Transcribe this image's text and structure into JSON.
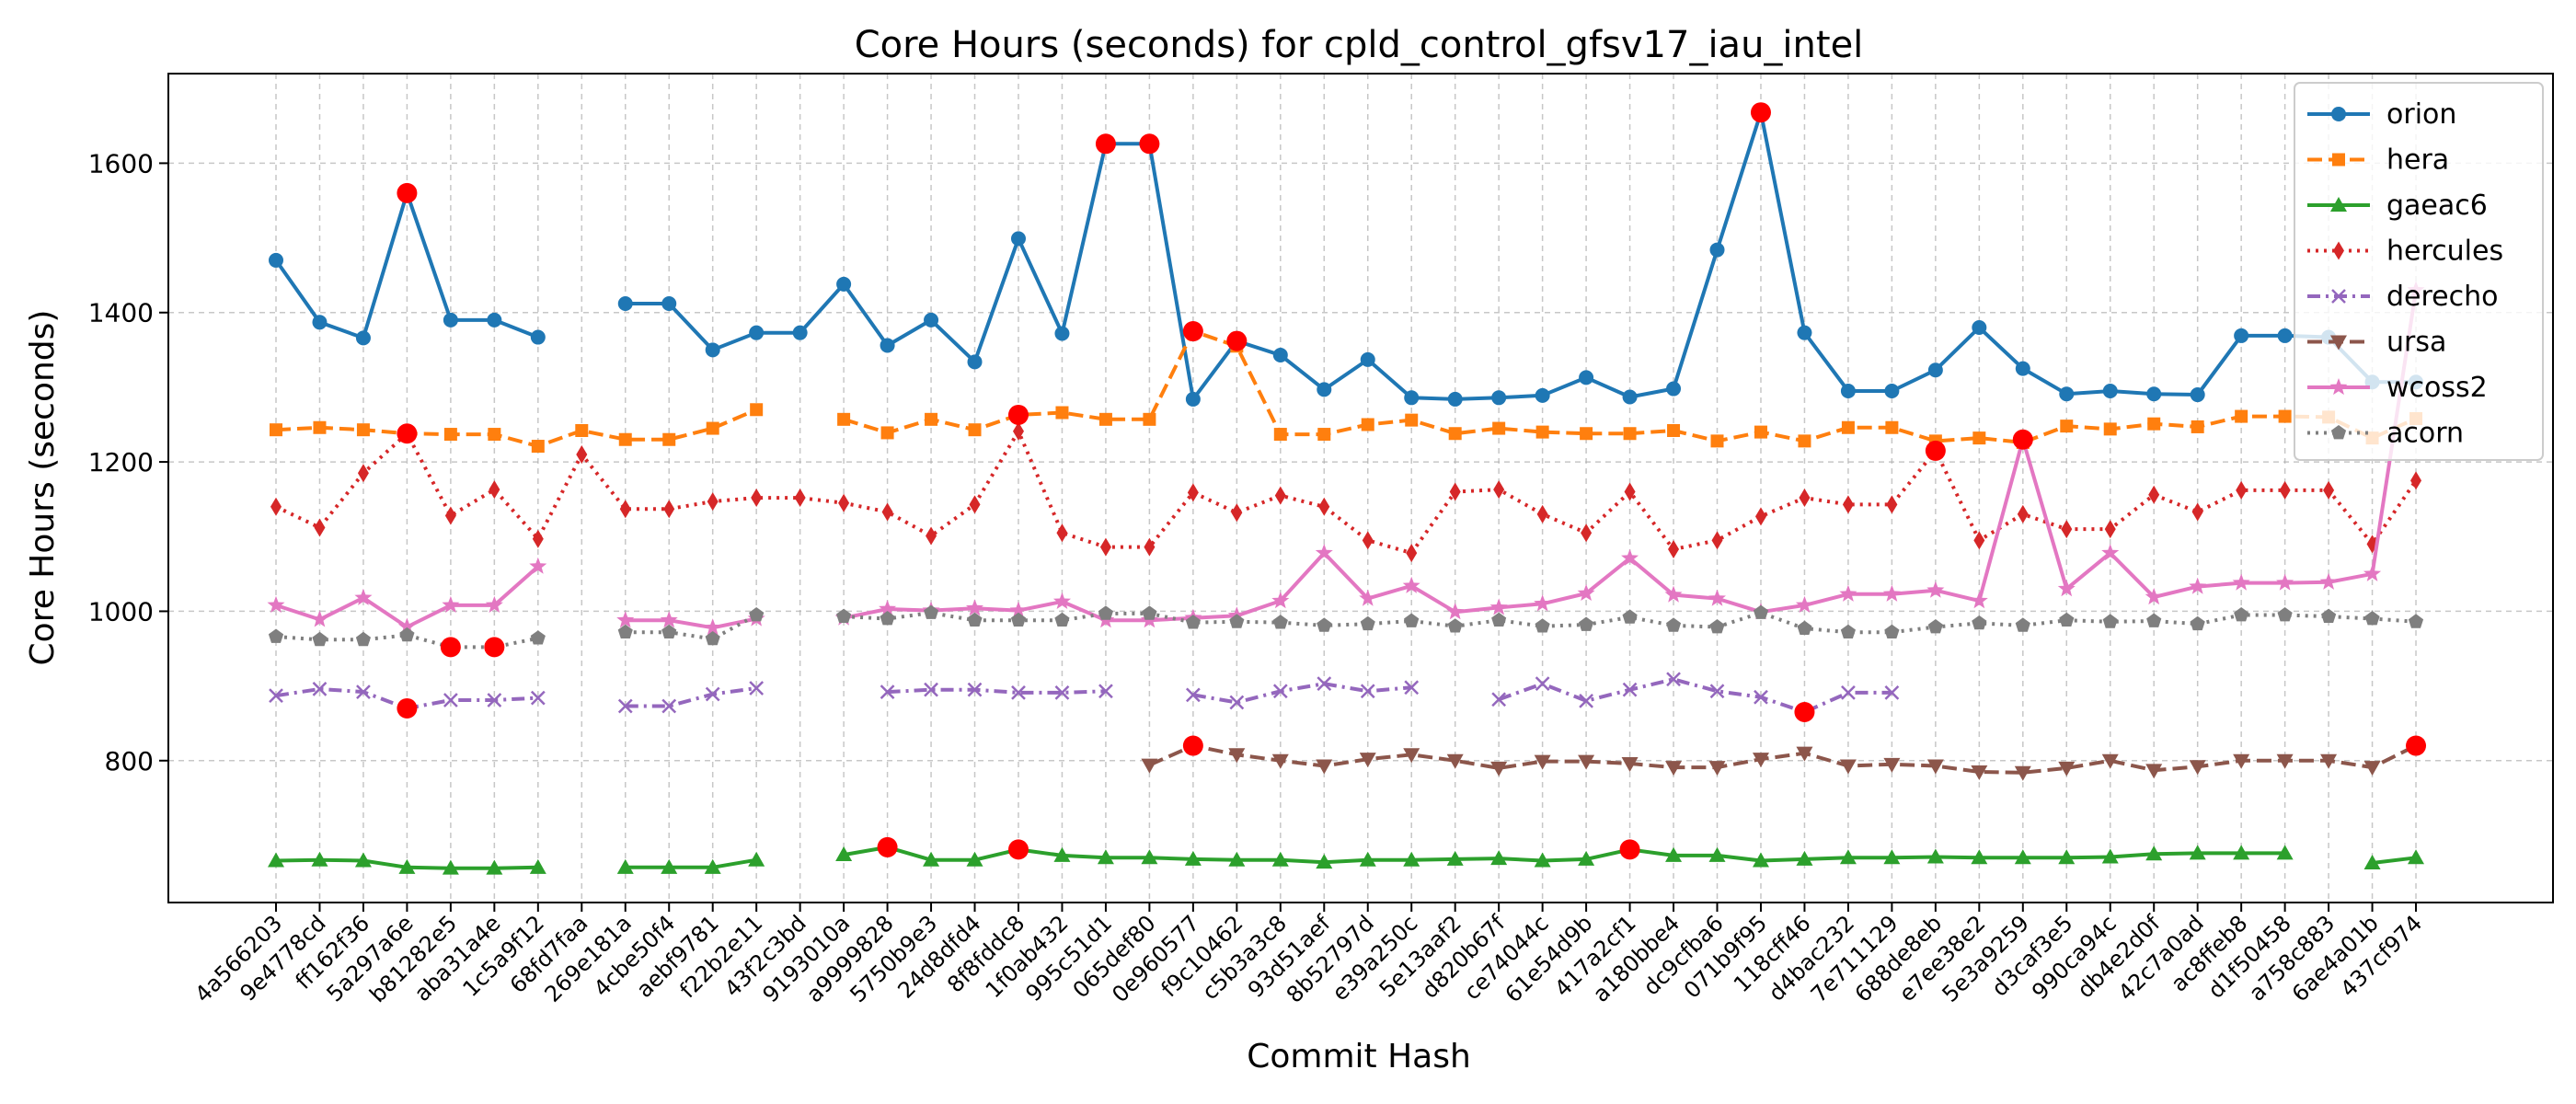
{
  "chart_data": {
    "type": "line",
    "title": "Core Hours (seconds) for cpld_control_gfsv17_iau_intel",
    "xlabel": "Commit Hash",
    "ylabel": "Core Hours (seconds)",
    "ylim": [
      610,
      1720
    ],
    "yticks": [
      800,
      1000,
      1200,
      1400,
      1600
    ],
    "grid": true,
    "legend_position": "top-right",
    "categories": [
      "4a566203",
      "9e4778cd",
      "ff162f36",
      "5a297a6e",
      "b81282e5",
      "aba31a4e",
      "1c5a9f12",
      "68fd7faa",
      "269e181a",
      "4cbe50f4",
      "aebf9781",
      "f22b2e11",
      "43f2c3bd",
      "9193010a",
      "a9999828",
      "5750b9e3",
      "24d8dfd4",
      "8f8fddc8",
      "1f0ab432",
      "995c51d1",
      "065def80",
      "0e960577",
      "f9c10462",
      "c5b3a3c8",
      "93d51aef",
      "8b52797d",
      "e39a250c",
      "5e13aaf2",
      "d820b67f",
      "ce74044c",
      "61e54d9b",
      "417a2cf1",
      "a180bbe4",
      "dc9cfba6",
      "071b9f95",
      "118cff46",
      "d4bac232",
      "7e711129",
      "688de8eb",
      "e7ee38e2",
      "5e3a9259",
      "d3caf3e5",
      "990ca94c",
      "db4e2d0f",
      "42c7a0ad",
      "ac8ffeb8",
      "d1f50458",
      "a758c883",
      "6ae4a01b",
      "437cf974"
    ],
    "series": [
      {
        "name": "orion",
        "color": "#1f77b4",
        "dash": "solid",
        "marker": "circle",
        "values": [
          1470,
          1387,
          1366,
          1560,
          1390,
          1390,
          1367,
          null,
          1412,
          1412,
          1350,
          1373,
          1373,
          1438,
          1356,
          1390,
          1334,
          1499,
          1372,
          1626,
          1626,
          1284,
          1362,
          1343,
          1297,
          1337,
          1286,
          1284,
          1286,
          1289,
          1313,
          1287,
          1298,
          1484,
          1668,
          1373,
          1295,
          1295,
          1323,
          1380,
          1325,
          1291,
          1295,
          1291,
          1290,
          1369,
          1369,
          1367,
          1307,
          1307
        ]
      },
      {
        "name": "hera",
        "color": "#ff7f0e",
        "dash": "dashed",
        "marker": "square",
        "values": [
          1243,
          1246,
          1243,
          1238,
          1237,
          1237,
          1221,
          1242,
          1230,
          1230,
          1245,
          1270,
          null,
          1257,
          1239,
          1257,
          1243,
          1263,
          1266,
          1257,
          1257,
          1375,
          1355,
          1237,
          1237,
          1250,
          1256,
          1238,
          1245,
          1240,
          1238,
          1238,
          1242,
          1228,
          1240,
          1228,
          1246,
          1246,
          1228,
          1232,
          1226,
          1248,
          1244,
          1251,
          1247,
          1261,
          1261,
          1260,
          1232,
          1258
        ]
      },
      {
        "name": "gaeac6",
        "color": "#2ca02c",
        "dash": "solid",
        "marker": "triangle-up",
        "values": [
          666,
          667,
          666,
          657,
          656,
          656,
          657,
          null,
          657,
          657,
          657,
          667,
          null,
          674,
          684,
          667,
          667,
          681,
          673,
          670,
          670,
          668,
          667,
          667,
          664,
          667,
          667,
          668,
          669,
          666,
          668,
          681,
          673,
          673,
          666,
          668,
          670,
          670,
          671,
          670,
          670,
          670,
          671,
          675,
          676,
          676,
          676,
          null,
          663,
          670
        ]
      },
      {
        "name": "hercules",
        "color": "#d62728",
        "dash": "dotted",
        "marker": "thin-diamond",
        "values": [
          1140,
          1112,
          1185,
          1238,
          1128,
          1163,
          1097,
          1210,
          1137,
          1137,
          1147,
          1152,
          1152,
          1145,
          1133,
          1101,
          1143,
          1241,
          1105,
          1086,
          1086,
          1159,
          1132,
          1155,
          1140,
          1095,
          1078,
          1160,
          1163,
          1130,
          1105,
          1160,
          1083,
          1095,
          1127,
          1152,
          1143,
          1143,
          1215,
          1095,
          1130,
          1110,
          1110,
          1156,
          1133,
          1162,
          1162,
          1162,
          1090,
          1175
        ]
      },
      {
        "name": "derecho",
        "color": "#9467bd",
        "dash": "dashdot",
        "marker": "x",
        "values": [
          887,
          896,
          892,
          870,
          881,
          881,
          884,
          null,
          873,
          873,
          889,
          897,
          null,
          null,
          892,
          895,
          895,
          891,
          891,
          893,
          null,
          888,
          878,
          893,
          903,
          893,
          898,
          null,
          882,
          903,
          880,
          895,
          909,
          893,
          885,
          865,
          891,
          891,
          null,
          null,
          null,
          null,
          null,
          null,
          null,
          null,
          null,
          null,
          null,
          null
        ]
      },
      {
        "name": "ursa",
        "color": "#8c564b",
        "dash": "dashed",
        "marker": "triangle-down",
        "values": [
          null,
          null,
          null,
          null,
          null,
          null,
          null,
          null,
          null,
          null,
          null,
          null,
          null,
          null,
          null,
          null,
          null,
          null,
          null,
          null,
          794,
          820,
          808,
          800,
          793,
          802,
          808,
          800,
          790,
          799,
          799,
          796,
          791,
          791,
          802,
          810,
          793,
          795,
          793,
          785,
          784,
          790,
          800,
          787,
          792,
          800,
          800,
          800,
          791,
          820
        ]
      },
      {
        "name": "wcoss2",
        "color": "#e377c2",
        "dash": "solid",
        "marker": "star",
        "values": [
          1008,
          989,
          1018,
          979,
          1008,
          1008,
          1060,
          null,
          988,
          988,
          978,
          990,
          null,
          991,
          1003,
          1001,
          1004,
          1001,
          1013,
          988,
          988,
          991,
          994,
          1014,
          1078,
          1017,
          1034,
          999,
          1005,
          1010,
          1024,
          1071,
          1022,
          1017,
          999,
          1008,
          1023,
          1023,
          1028,
          1014,
          1230,
          1030,
          1078,
          1019,
          1033,
          1038,
          1038,
          1039,
          1050,
          1430
        ]
      },
      {
        "name": "acorn",
        "color": "#7f7f7f",
        "dash": "dotted",
        "marker": "pentagon",
        "values": [
          966,
          962,
          962,
          968,
          952,
          952,
          964,
          null,
          972,
          972,
          963,
          995,
          null,
          993,
          990,
          998,
          988,
          988,
          988,
          997,
          997,
          985,
          986,
          985,
          981,
          983,
          987,
          980,
          988,
          980,
          982,
          992,
          981,
          979,
          998,
          977,
          972,
          972,
          979,
          984,
          981,
          988,
          986,
          987,
          983,
          995,
          995,
          993,
          990,
          986
        ]
      }
    ],
    "highlights": [
      {
        "series": "orion",
        "index": 3
      },
      {
        "series": "orion",
        "index": 19
      },
      {
        "series": "orion",
        "index": 20
      },
      {
        "series": "orion",
        "index": 22
      },
      {
        "series": "orion",
        "index": 34
      },
      {
        "series": "hera",
        "index": 21
      },
      {
        "series": "hera",
        "index": 3
      },
      {
        "series": "hera",
        "index": 17
      },
      {
        "series": "hercules",
        "index": 38
      },
      {
        "series": "wcoss2",
        "index": 40
      },
      {
        "series": "acorn",
        "index": 4
      },
      {
        "series": "acorn",
        "index": 5
      },
      {
        "series": "derecho",
        "index": 3
      },
      {
        "series": "derecho",
        "index": 35
      },
      {
        "series": "ursa",
        "index": 21
      },
      {
        "series": "ursa",
        "index": 49
      },
      {
        "series": "gaeac6",
        "index": 14
      },
      {
        "series": "gaeac6",
        "index": 17
      },
      {
        "series": "gaeac6",
        "index": 31
      }
    ],
    "highlight_color": "#ff0000"
  }
}
